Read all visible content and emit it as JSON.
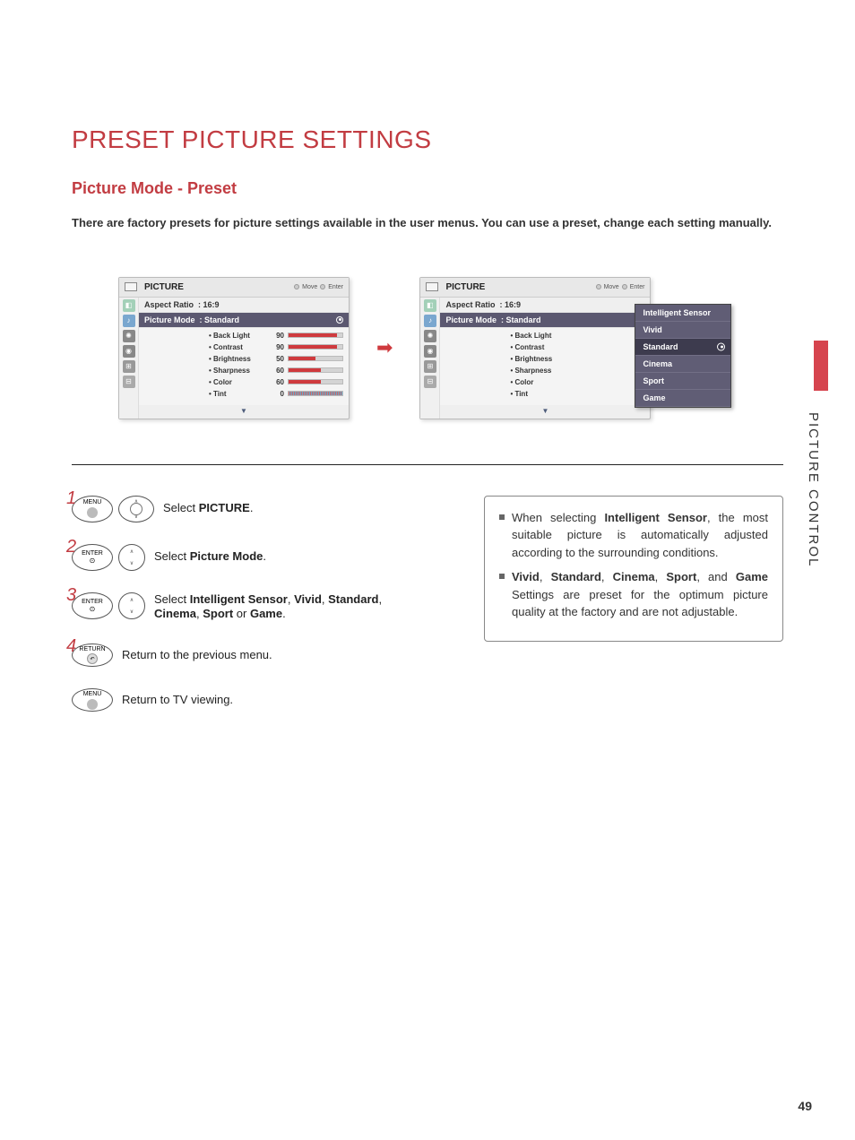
{
  "colors": {
    "accent_title": "#c23c42",
    "accent_arrow": "#cf3a3e",
    "osd_sel_bg": "#5b5870",
    "popup_bg": "#605d75",
    "bar_fill": "#cf3a3e",
    "page_bg": "#ffffff",
    "text": "#333333"
  },
  "page_number": "49",
  "side_label": "PICTURE CONTROL",
  "headings": {
    "main": "PRESET PICTURE SETTINGS",
    "sub": "Picture Mode - Preset"
  },
  "intro_text": "There are factory presets for picture settings available in the user menus. You can use a preset, change each setting manually.",
  "osd": {
    "title": "PICTURE",
    "hint_move": "Move",
    "hint_enter": "Enter",
    "aspect_label": "Aspect Ratio",
    "aspect_value": ": 16:9",
    "mode_label": "Picture Mode",
    "mode_value": ": Standard",
    "params": [
      {
        "label": "Back Light",
        "value": "90",
        "fill_pct": 90
      },
      {
        "label": "Contrast",
        "value": "90",
        "fill_pct": 90
      },
      {
        "label": "Brightness",
        "value": "50",
        "fill_pct": 50
      },
      {
        "label": "Sharpness",
        "value": "60",
        "fill_pct": 60
      },
      {
        "label": "Color",
        "value": "60",
        "fill_pct": 60
      },
      {
        "label": "Tint",
        "value": "0",
        "fill_pct": 50
      }
    ],
    "popup_options": [
      "Intelligent Sensor",
      "Vivid",
      "Standard",
      "Cinema",
      "Sport",
      "Game"
    ],
    "popup_selected_index": 2
  },
  "steps": {
    "s1": {
      "num": "1",
      "btn": "MENU",
      "text_pre": "Select ",
      "text_b": "PICTURE",
      "text_post": "."
    },
    "s2": {
      "num": "2",
      "btn": "ENTER",
      "text_pre": "Select ",
      "text_b": "Picture Mode",
      "text_post": "."
    },
    "s3": {
      "num": "3",
      "btn": "ENTER",
      "text_pre": "Select ",
      "text_b": "Intelligent Sensor",
      "sep1": ", ",
      "b2": "Vivid",
      "sep2": ", ",
      "b3": "Standard",
      "sep3": ", ",
      "b4": "Cinema",
      "sep4": ", ",
      "b5": "Sport",
      "sep5": " or ",
      "b6": "Game",
      "text_post": "."
    },
    "s4": {
      "num": "4",
      "btn": "RETURN",
      "text": "Return to the previous menu."
    },
    "s5": {
      "btn": "MENU",
      "text": "Return to TV viewing."
    }
  },
  "info": {
    "i1_pre": "When selecting ",
    "i1_b": "Intelligent Sensor",
    "i1_post": ", the most suitable picture is automatically adjusted according to the surrounding conditions.",
    "i2_b1": "Vivid",
    "i2_s1": ", ",
    "i2_b2": "Standard",
    "i2_s2": ", ",
    "i2_b3": "Cinema",
    "i2_s3": ", ",
    "i2_b4": "Sport",
    "i2_s4": ", and ",
    "i2_b5": "Game",
    "i2_post": " Settings are preset for the optimum picture quality at the factory and are not adjustable."
  }
}
